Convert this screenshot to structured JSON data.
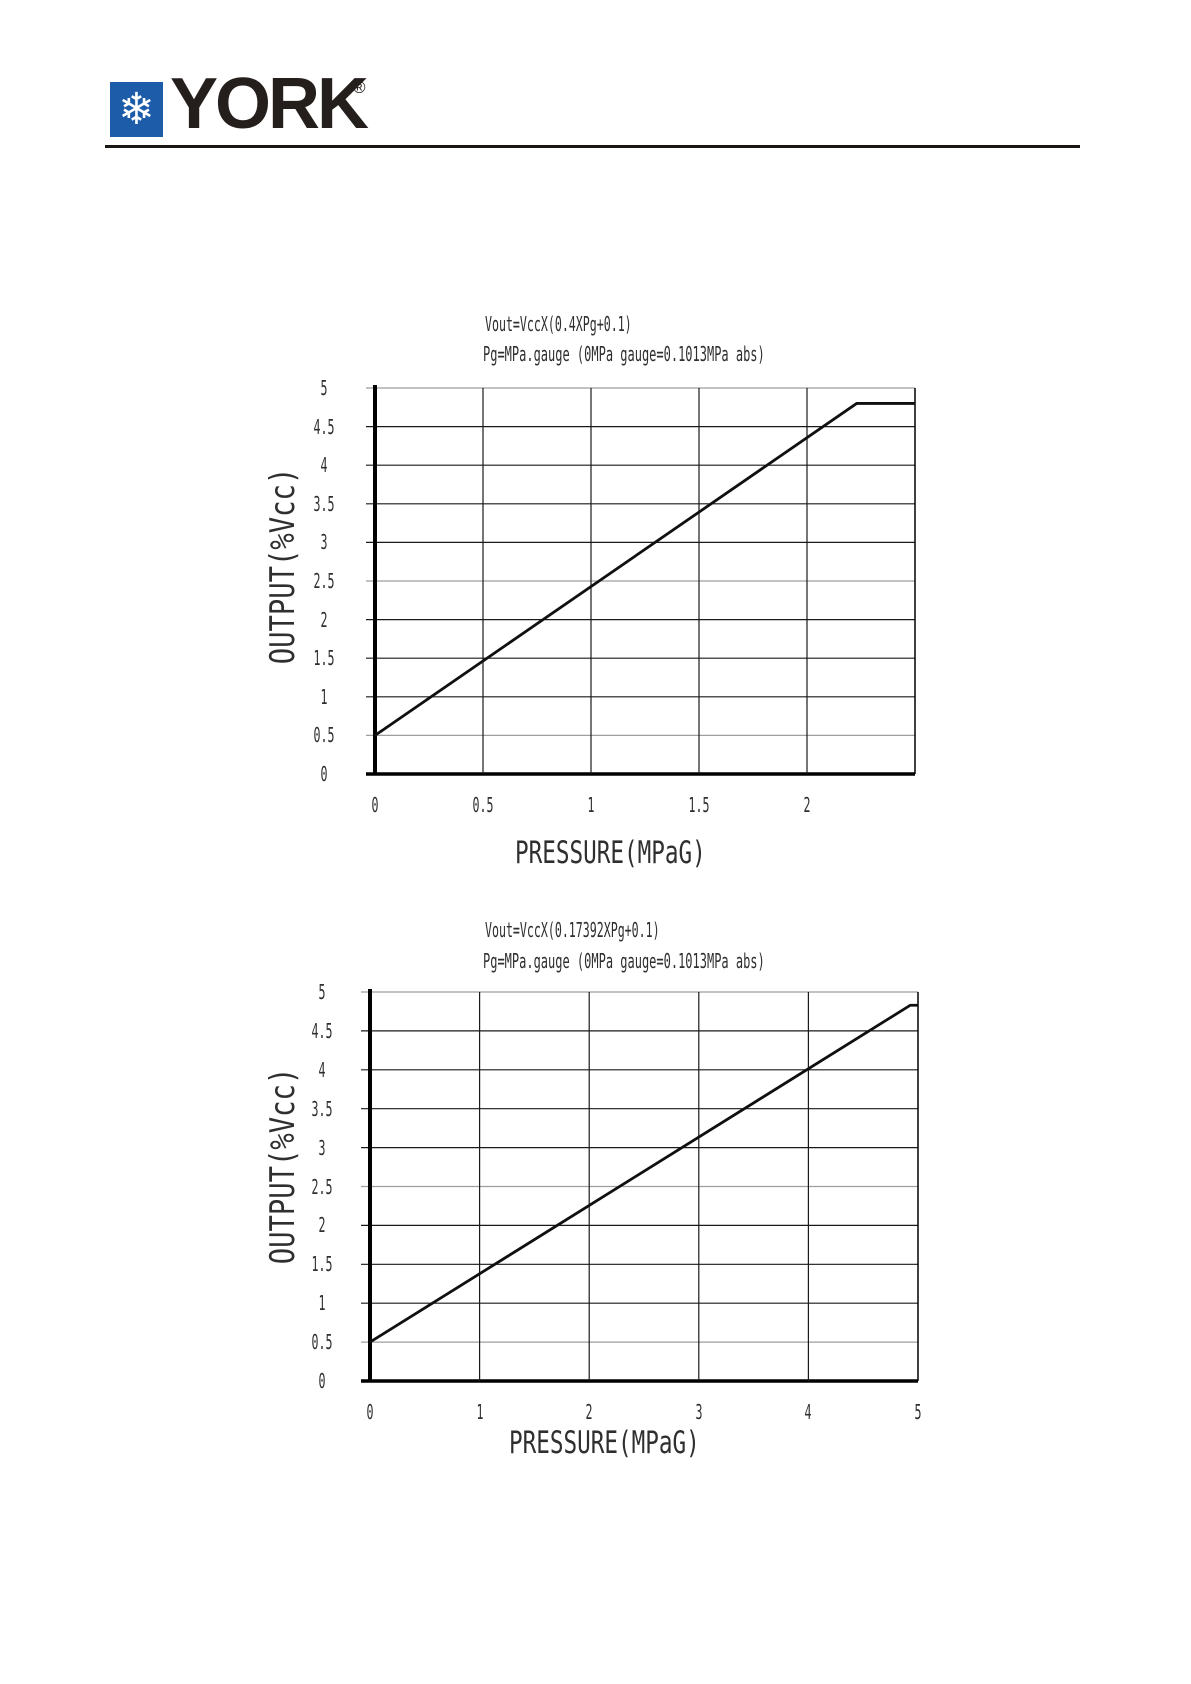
{
  "header": {
    "brand": "YORK",
    "registered_mark": "®",
    "logo_glyph": "❄",
    "logo_bg_color": "#1d5ca8",
    "logo_text_color": "#241f1c"
  },
  "chart_data": [
    {
      "type": "line",
      "title": "Vout=VccX(0.4XPg+0.1)",
      "subtitle": "Pg=MPa.gauge (0MPa gauge=0.1013MPa abs)",
      "xlabel": "PRESSURE(MPaG)",
      "ylabel": "OUTPUT(%Vcc)",
      "xlim": [
        0,
        2.5
      ],
      "ylim": [
        0,
        5
      ],
      "x_tick_values": [
        0,
        0.5,
        1,
        1.5,
        2
      ],
      "x_tick_labels": [
        "0",
        "0.5",
        "1",
        "1.5",
        "2"
      ],
      "x_grid_values": [
        0.5,
        1,
        1.5,
        2
      ],
      "y_tick_values": [
        5,
        4.5,
        4,
        3.5,
        3,
        2.5,
        2,
        1.5,
        1,
        0.5,
        0
      ],
      "y_tick_labels": [
        "5",
        "4.5",
        "4",
        "3.5",
        "3",
        "2.5",
        "2",
        "1.5",
        "1",
        "0.5",
        "0"
      ],
      "light_y_values": [
        5,
        2.5,
        0.5
      ],
      "grid": "on",
      "legend": "none",
      "series": [
        {
          "name": "output-vs-pressure",
          "points": [
            [
              0,
              0.5
            ],
            [
              2.23,
              4.8
            ],
            [
              2.5,
              4.8
            ]
          ]
        }
      ]
    },
    {
      "type": "line",
      "title": "Vout=VccX(0.17392XPg+0.1)",
      "subtitle": "Pg=MPa.gauge (0MPa gauge=0.1013MPa abs)",
      "xlabel": "PRESSURE(MPaG)",
      "ylabel": "OUTPUT(%Vcc)",
      "xlim": [
        0,
        5
      ],
      "ylim": [
        0,
        5
      ],
      "x_tick_values": [
        0,
        1,
        2,
        3,
        4,
        5
      ],
      "x_tick_labels": [
        "0",
        "1",
        "2",
        "3",
        "4",
        "5"
      ],
      "x_grid_values": [
        1,
        2,
        3,
        4
      ],
      "y_tick_values": [
        5,
        4.5,
        4,
        3.5,
        3,
        2.5,
        2,
        1.5,
        1,
        0.5,
        0
      ],
      "y_tick_labels": [
        "5",
        "4.5",
        "4",
        "3.5",
        "3",
        "2.5",
        "2",
        "1.5",
        "1",
        "0.5",
        "0"
      ],
      "light_y_values": [
        5,
        2.5,
        0.5
      ],
      "grid": "on",
      "legend": "none",
      "series": [
        {
          "name": "output-vs-pressure",
          "points": [
            [
              0,
              0.5
            ],
            [
              4.93,
              4.83
            ],
            [
              5,
              4.83
            ]
          ]
        }
      ]
    }
  ],
  "colors": {
    "grid_dark": "#1a1a1a",
    "grid_light": "#9e9e9e",
    "axis": "#000000",
    "data_line": "#101010"
  }
}
